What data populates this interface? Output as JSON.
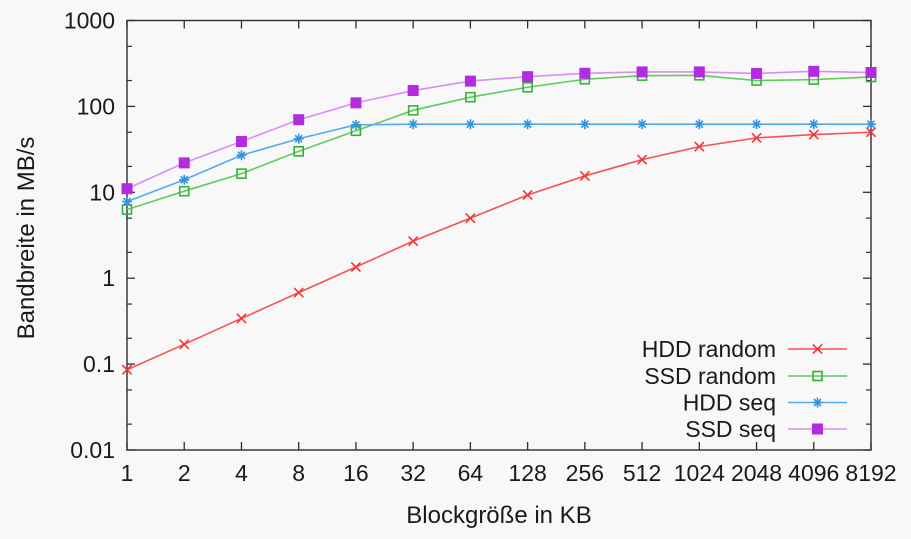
{
  "colors": {
    "background": "#f8f8f8",
    "frame": "#2e2e2e",
    "text": "#1a1a1a"
  },
  "chart_data": {
    "type": "line",
    "title": "",
    "xlabel": "Blockgröße in KB",
    "ylabel": "Bandbreite in MB/s",
    "x_scale": "log2",
    "y_scale": "log10",
    "xlim": [
      1,
      8192
    ],
    "ylim": [
      0.01,
      1000
    ],
    "grid": false,
    "legend_position": "inside-bottom-right",
    "x_ticks": [
      1,
      2,
      4,
      8,
      16,
      32,
      64,
      128,
      256,
      512,
      1024,
      2048,
      4096,
      8192
    ],
    "x_tick_labels": [
      "1",
      "2",
      "4",
      "8",
      "16",
      "32",
      "64",
      "128",
      "256",
      "512",
      "1024",
      "2048",
      "4096",
      "8192"
    ],
    "y_ticks": [
      0.01,
      0.1,
      1,
      10,
      100,
      1000
    ],
    "y_tick_labels": [
      "0.01",
      "0.1",
      "1",
      "10",
      "100",
      "1000"
    ],
    "y_minor_ticks": [
      0.02,
      0.05,
      0.2,
      0.5,
      2,
      5,
      20,
      50,
      200,
      500
    ],
    "categories": [
      1,
      2,
      4,
      8,
      16,
      32,
      64,
      128,
      256,
      512,
      1024,
      2048,
      4096,
      8192
    ],
    "series": [
      {
        "name": "HDD random",
        "marker": "cross",
        "line_color": "#f75151",
        "marker_color": "#f23636",
        "values": [
          0.086,
          0.17,
          0.34,
          0.68,
          1.35,
          2.7,
          5.0,
          9.3,
          15.5,
          24,
          34,
          43,
          47,
          50
        ]
      },
      {
        "name": "SSD random",
        "marker": "open-square",
        "line_color": "#5ecb5e",
        "marker_color": "#33b433",
        "values": [
          6.3,
          10.3,
          16.5,
          30,
          52,
          90,
          128,
          167,
          207,
          228,
          230,
          200,
          205,
          220
        ]
      },
      {
        "name": "HDD seq",
        "marker": "asterisk",
        "line_color": "#56abec",
        "marker_color": "#3095de",
        "values": [
          7.8,
          14,
          27,
          42,
          61,
          62,
          62,
          62,
          62,
          62,
          62,
          62,
          62,
          62
        ]
      },
      {
        "name": "SSD seq",
        "marker": "filled-square",
        "line_color": "#da8ef4",
        "marker_color": "#b12be0",
        "values": [
          11,
          22,
          39,
          70,
          110,
          153,
          197,
          222,
          243,
          252,
          252,
          242,
          256,
          248
        ]
      }
    ]
  }
}
